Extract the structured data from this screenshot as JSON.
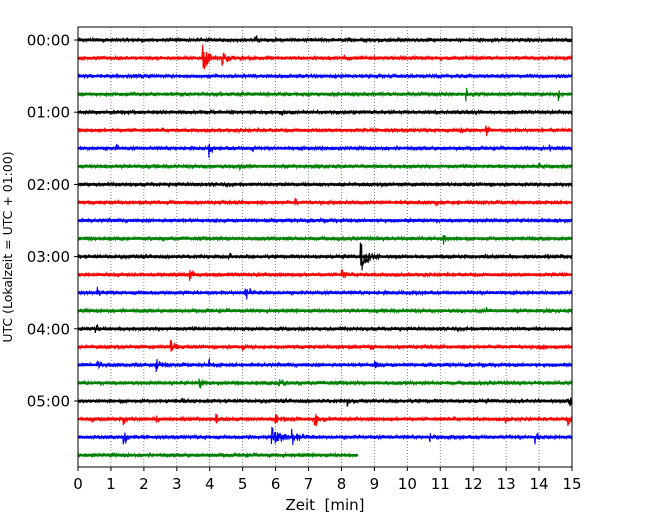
{
  "chart_data": {
    "type": "line",
    "title": "",
    "xlabel": "Zeit  [min]",
    "ylabel": "UTC (Lokalzeit = UTC + 01:00)",
    "xlim": [
      0,
      15
    ],
    "x_ticks": [
      "0",
      "1",
      "2",
      "3",
      "4",
      "5",
      "6",
      "7",
      "8",
      "9",
      "10",
      "11",
      "12",
      "13",
      "14",
      "15"
    ],
    "y_ticks": [
      {
        "label": "00:00",
        "trace": 0
      },
      {
        "label": "01:00",
        "trace": 4
      },
      {
        "label": "02:00",
        "trace": 8
      },
      {
        "label": "03:00",
        "trace": 12
      },
      {
        "label": "04:00",
        "trace": 16
      },
      {
        "label": "05:00",
        "trace": 20
      }
    ],
    "grid": {
      "x": true,
      "y": false,
      "style": "dotted"
    },
    "trace_interval_min": 15,
    "trace_colors": [
      "#000000",
      "#ff0000",
      "#0000ff",
      "#008000"
    ],
    "traces": [
      {
        "start": "00:00",
        "end_min": 15,
        "events": [
          {
            "t": 5.4,
            "amp": 0.5,
            "dur": 0.3
          },
          {
            "t": 8.2,
            "amp": 0.2,
            "dur": 0.2
          }
        ]
      },
      {
        "start": "00:15",
        "end_min": 15,
        "events": [
          {
            "t": 3.8,
            "amp": 2.0,
            "dur": 0.4
          },
          {
            "t": 4.4,
            "amp": 0.8,
            "dur": 0.6
          },
          {
            "t": 8.1,
            "amp": 0.3,
            "dur": 0.3
          }
        ]
      },
      {
        "start": "00:30",
        "end_min": 15,
        "events": []
      },
      {
        "start": "00:45",
        "end_min": 15,
        "events": [
          {
            "t": 11.8,
            "amp": 0.8,
            "dur": 0.3
          },
          {
            "t": 14.6,
            "amp": 0.6,
            "dur": 0.2
          }
        ]
      },
      {
        "start": "01:00",
        "end_min": 15,
        "events": [
          {
            "t": 1.2,
            "amp": 0.3,
            "dur": 0.2
          },
          {
            "t": 6.2,
            "amp": 0.3,
            "dur": 0.2
          }
        ]
      },
      {
        "start": "01:15",
        "end_min": 15,
        "events": [
          {
            "t": 11.6,
            "amp": 0.4,
            "dur": 0.2
          },
          {
            "t": 12.4,
            "amp": 0.8,
            "dur": 0.3
          }
        ]
      },
      {
        "start": "01:30",
        "end_min": 15,
        "events": [
          {
            "t": 1.2,
            "amp": 0.4,
            "dur": 0.2
          },
          {
            "t": 4.0,
            "amp": 0.7,
            "dur": 0.3
          },
          {
            "t": 5.3,
            "amp": 0.5,
            "dur": 0.2
          },
          {
            "t": 7.3,
            "amp": 0.4,
            "dur": 0.2
          },
          {
            "t": 14.3,
            "amp": 0.5,
            "dur": 0.2
          }
        ]
      },
      {
        "start": "01:45",
        "end_min": 15,
        "events": [
          {
            "t": 4.9,
            "amp": 0.3,
            "dur": 0.3
          },
          {
            "t": 14.0,
            "amp": 0.6,
            "dur": 0.2
          }
        ]
      },
      {
        "start": "02:00",
        "end_min": 15,
        "events": []
      },
      {
        "start": "02:15",
        "end_min": 15,
        "events": [
          {
            "t": 6.6,
            "amp": 0.5,
            "dur": 0.2
          },
          {
            "t": 10.9,
            "amp": 0.3,
            "dur": 0.2
          }
        ]
      },
      {
        "start": "02:30",
        "end_min": 15,
        "events": []
      },
      {
        "start": "02:45",
        "end_min": 15,
        "events": [
          {
            "t": 11.1,
            "amp": 0.6,
            "dur": 0.3
          }
        ]
      },
      {
        "start": "03:00",
        "end_min": 15,
        "events": [
          {
            "t": 4.6,
            "amp": 0.4,
            "dur": 0.4
          },
          {
            "t": 8.6,
            "amp": 1.6,
            "dur": 0.6
          }
        ]
      },
      {
        "start": "03:15",
        "end_min": 15,
        "events": [
          {
            "t": 3.4,
            "amp": 0.8,
            "dur": 0.3
          },
          {
            "t": 8.0,
            "amp": 0.8,
            "dur": 0.3
          }
        ]
      },
      {
        "start": "03:30",
        "end_min": 15,
        "events": [
          {
            "t": 0.6,
            "amp": 0.6,
            "dur": 0.2
          },
          {
            "t": 5.1,
            "amp": 0.8,
            "dur": 0.4
          }
        ]
      },
      {
        "start": "03:45",
        "end_min": 15,
        "events": [
          {
            "t": 12.4,
            "amp": 0.3,
            "dur": 0.2
          }
        ]
      },
      {
        "start": "04:00",
        "end_min": 15,
        "events": [
          {
            "t": 0.55,
            "amp": 0.5,
            "dur": 0.2
          }
        ]
      },
      {
        "start": "04:15",
        "end_min": 15,
        "events": [
          {
            "t": 2.8,
            "amp": 0.9,
            "dur": 0.4
          },
          {
            "t": 5.0,
            "amp": 0.4,
            "dur": 0.2
          },
          {
            "t": 8.9,
            "amp": 0.5,
            "dur": 0.2
          },
          {
            "t": 14.0,
            "amp": 0.4,
            "dur": 0.4
          }
        ]
      },
      {
        "start": "04:30",
        "end_min": 15,
        "events": [
          {
            "t": 0.6,
            "amp": 0.7,
            "dur": 0.3
          },
          {
            "t": 2.4,
            "amp": 0.7,
            "dur": 0.3
          },
          {
            "t": 4.0,
            "amp": 0.6,
            "dur": 0.3
          },
          {
            "t": 9.0,
            "amp": 0.5,
            "dur": 0.3
          }
        ]
      },
      {
        "start": "04:45",
        "end_min": 15,
        "events": [
          {
            "t": 3.7,
            "amp": 0.7,
            "dur": 0.3
          },
          {
            "t": 6.1,
            "amp": 0.8,
            "dur": 0.3
          }
        ]
      },
      {
        "start": "05:00",
        "end_min": 15,
        "events": [
          {
            "t": 3.2,
            "amp": 0.3,
            "dur": 0.2
          },
          {
            "t": 8.2,
            "amp": 0.4,
            "dur": 0.3
          },
          {
            "t": 14.9,
            "amp": 0.9,
            "dur": 0.3
          }
        ]
      },
      {
        "start": "05:15",
        "end_min": 15,
        "events": [
          {
            "t": 0.4,
            "amp": 0.4,
            "dur": 0.3
          },
          {
            "t": 1.4,
            "amp": 0.6,
            "dur": 0.3
          },
          {
            "t": 2.4,
            "amp": 0.4,
            "dur": 0.2
          },
          {
            "t": 4.2,
            "amp": 0.7,
            "dur": 0.3
          },
          {
            "t": 6.0,
            "amp": 0.6,
            "dur": 0.5
          },
          {
            "t": 7.2,
            "amp": 0.8,
            "dur": 0.6
          },
          {
            "t": 13.0,
            "amp": 0.4,
            "dur": 0.3
          },
          {
            "t": 14.9,
            "amp": 0.6,
            "dur": 0.3
          }
        ]
      },
      {
        "start": "05:30",
        "end_min": 15,
        "events": [
          {
            "t": 1.4,
            "amp": 1.0,
            "dur": 0.3
          },
          {
            "t": 5.9,
            "amp": 1.6,
            "dur": 0.7
          },
          {
            "t": 6.5,
            "amp": 1.0,
            "dur": 0.6
          },
          {
            "t": 10.7,
            "amp": 0.4,
            "dur": 0.4
          },
          {
            "t": 13.9,
            "amp": 0.8,
            "dur": 0.3
          }
        ]
      },
      {
        "start": "05:45",
        "end_min": 8.5,
        "events": [
          {
            "t": 5.8,
            "amp": 0.3,
            "dur": 0.3
          }
        ]
      }
    ]
  }
}
